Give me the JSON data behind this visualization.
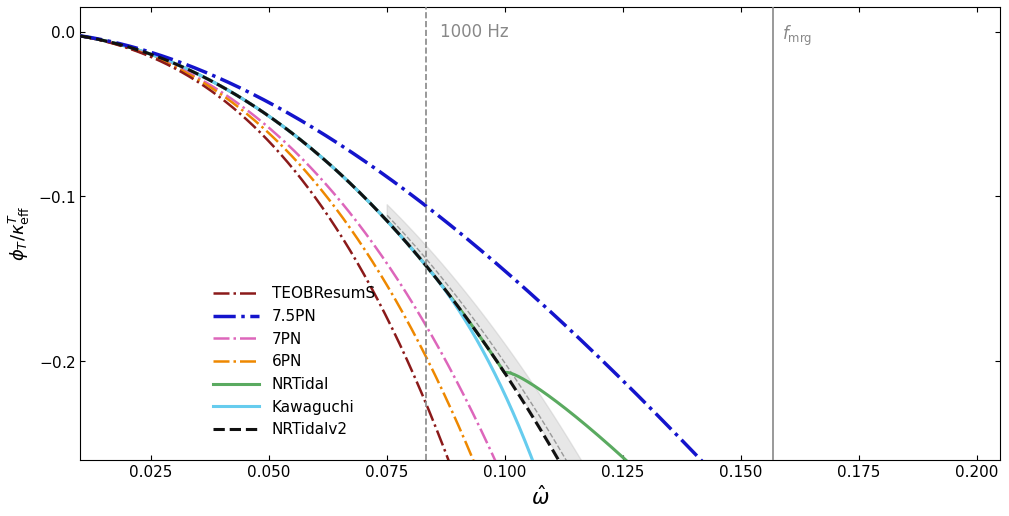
{
  "xlabel": "$\\hat{\\omega}$",
  "ylabel": "$\\phi_T / \\kappa_{\\rm eff}^T$",
  "xlim": [
    0.01,
    0.205
  ],
  "ylim": [
    -0.26,
    0.015
  ],
  "vline_1000hz": 0.0832,
  "vline_fmrg": 0.1568,
  "label_1000hz": "1000 Hz",
  "label_fmrg": "$f_{\\rm mrg}$",
  "bg_color": "#ffffff",
  "series": {
    "TEOBResumS": {
      "color": "#8b1a1a",
      "lw": 1.8,
      "ls": "dashdot",
      "zorder": 5
    },
    "7.5PN": {
      "color": "#1414cc",
      "lw": 2.5,
      "ls": "dashdot",
      "zorder": 6
    },
    "7PN": {
      "color": "#dd66bb",
      "lw": 1.8,
      "ls": "dashdot",
      "zorder": 4
    },
    "6PN": {
      "color": "#ee8800",
      "lw": 1.8,
      "ls": "dashdot",
      "zorder": 4
    },
    "NRTidal": {
      "color": "#5aaa60",
      "lw": 2.2,
      "ls": "solid",
      "zorder": 3
    },
    "Kawaguchi": {
      "color": "#66ccee",
      "lw": 2.2,
      "ls": "solid",
      "zorder": 3
    },
    "NRTidalv2": {
      "color": "#111111",
      "lw": 2.2,
      "ls": "dashed",
      "zorder": 7
    }
  },
  "shade_color": "#bbbbbb",
  "shade_alpha": 0.35
}
